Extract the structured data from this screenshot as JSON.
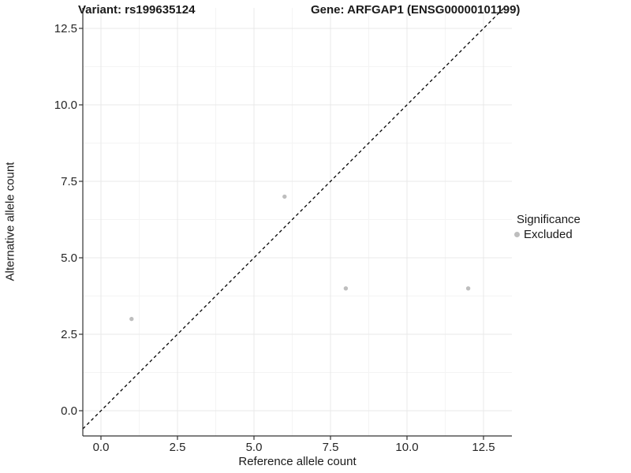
{
  "chart_data": {
    "type": "scatter",
    "title_left": "Variant: rs199635124",
    "title_right": "Gene: ARFGAP1 (ENSG00000101199)",
    "xlabel": "Reference allele count",
    "ylabel": "Alternative allele count",
    "xlim": [
      0,
      12.5
    ],
    "ylim": [
      0,
      12.5
    ],
    "x_ticks": {
      "values": [
        0,
        2.5,
        5,
        7.5,
        10,
        12.5
      ],
      "labels": [
        "0.0",
        "2.5",
        "5.0",
        "7.5",
        "10.0",
        "12.5"
      ]
    },
    "y_ticks": {
      "values": [
        0,
        2.5,
        5,
        7.5,
        10,
        12.5
      ],
      "labels": [
        "0.0",
        "2.5",
        "5.0",
        "7.5",
        "10.0",
        "12.5"
      ]
    },
    "grid": {
      "major": true,
      "minor": true
    },
    "reference_line": {
      "type": "identity",
      "slope": 1,
      "intercept": 0,
      "style": "dashed",
      "color": "#000000"
    },
    "series": [
      {
        "name": "Excluded",
        "color": "#bebebe",
        "points": [
          {
            "x": 1,
            "y": 3
          },
          {
            "x": 6,
            "y": 7
          },
          {
            "x": 8,
            "y": 4
          },
          {
            "x": 12,
            "y": 4
          }
        ]
      }
    ],
    "legend": {
      "title": "Significance",
      "position": "right",
      "entries": [
        {
          "label": "Excluded",
          "color": "#bebebe",
          "marker": "circle"
        }
      ]
    }
  },
  "colors": {
    "background": "#ffffff",
    "grid_major": "#e8e8e8",
    "grid_minor": "#f4f4f4",
    "axis_line": "#333333",
    "tick_text": "#262626",
    "point": "#bebebe"
  }
}
